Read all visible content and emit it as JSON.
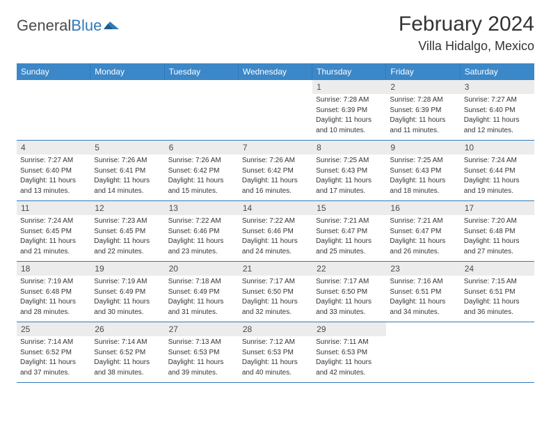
{
  "colors": {
    "header_bg": "#3b87c8",
    "header_border": "#2f79b9",
    "daynum_bg": "#ececec",
    "text": "#333333",
    "logo_gray": "#4a4a4a",
    "logo_blue": "#2f79b9",
    "page_bg": "#ffffff"
  },
  "typography": {
    "month_title_fontsize": 30,
    "location_fontsize": 18,
    "dow_fontsize": 12,
    "daynum_fontsize": 12,
    "cell_fontsize": 10,
    "logo_fontsize": 22
  },
  "logo": {
    "part1": "General",
    "part2": "Blue"
  },
  "title": {
    "month": "February 2024",
    "location": "Villa Hidalgo, Mexico"
  },
  "dow": [
    "Sunday",
    "Monday",
    "Tuesday",
    "Wednesday",
    "Thursday",
    "Friday",
    "Saturday"
  ],
  "weeks": [
    [
      {},
      {},
      {},
      {},
      {
        "day": "1",
        "sunrise": "Sunrise: 7:28 AM",
        "sunset": "Sunset: 6:39 PM",
        "daylight1": "Daylight: 11 hours",
        "daylight2": "and 10 minutes."
      },
      {
        "day": "2",
        "sunrise": "Sunrise: 7:28 AM",
        "sunset": "Sunset: 6:39 PM",
        "daylight1": "Daylight: 11 hours",
        "daylight2": "and 11 minutes."
      },
      {
        "day": "3",
        "sunrise": "Sunrise: 7:27 AM",
        "sunset": "Sunset: 6:40 PM",
        "daylight1": "Daylight: 11 hours",
        "daylight2": "and 12 minutes."
      }
    ],
    [
      {
        "day": "4",
        "sunrise": "Sunrise: 7:27 AM",
        "sunset": "Sunset: 6:40 PM",
        "daylight1": "Daylight: 11 hours",
        "daylight2": "and 13 minutes."
      },
      {
        "day": "5",
        "sunrise": "Sunrise: 7:26 AM",
        "sunset": "Sunset: 6:41 PM",
        "daylight1": "Daylight: 11 hours",
        "daylight2": "and 14 minutes."
      },
      {
        "day": "6",
        "sunrise": "Sunrise: 7:26 AM",
        "sunset": "Sunset: 6:42 PM",
        "daylight1": "Daylight: 11 hours",
        "daylight2": "and 15 minutes."
      },
      {
        "day": "7",
        "sunrise": "Sunrise: 7:26 AM",
        "sunset": "Sunset: 6:42 PM",
        "daylight1": "Daylight: 11 hours",
        "daylight2": "and 16 minutes."
      },
      {
        "day": "8",
        "sunrise": "Sunrise: 7:25 AM",
        "sunset": "Sunset: 6:43 PM",
        "daylight1": "Daylight: 11 hours",
        "daylight2": "and 17 minutes."
      },
      {
        "day": "9",
        "sunrise": "Sunrise: 7:25 AM",
        "sunset": "Sunset: 6:43 PM",
        "daylight1": "Daylight: 11 hours",
        "daylight2": "and 18 minutes."
      },
      {
        "day": "10",
        "sunrise": "Sunrise: 7:24 AM",
        "sunset": "Sunset: 6:44 PM",
        "daylight1": "Daylight: 11 hours",
        "daylight2": "and 19 minutes."
      }
    ],
    [
      {
        "day": "11",
        "sunrise": "Sunrise: 7:24 AM",
        "sunset": "Sunset: 6:45 PM",
        "daylight1": "Daylight: 11 hours",
        "daylight2": "and 21 minutes."
      },
      {
        "day": "12",
        "sunrise": "Sunrise: 7:23 AM",
        "sunset": "Sunset: 6:45 PM",
        "daylight1": "Daylight: 11 hours",
        "daylight2": "and 22 minutes."
      },
      {
        "day": "13",
        "sunrise": "Sunrise: 7:22 AM",
        "sunset": "Sunset: 6:46 PM",
        "daylight1": "Daylight: 11 hours",
        "daylight2": "and 23 minutes."
      },
      {
        "day": "14",
        "sunrise": "Sunrise: 7:22 AM",
        "sunset": "Sunset: 6:46 PM",
        "daylight1": "Daylight: 11 hours",
        "daylight2": "and 24 minutes."
      },
      {
        "day": "15",
        "sunrise": "Sunrise: 7:21 AM",
        "sunset": "Sunset: 6:47 PM",
        "daylight1": "Daylight: 11 hours",
        "daylight2": "and 25 minutes."
      },
      {
        "day": "16",
        "sunrise": "Sunrise: 7:21 AM",
        "sunset": "Sunset: 6:47 PM",
        "daylight1": "Daylight: 11 hours",
        "daylight2": "and 26 minutes."
      },
      {
        "day": "17",
        "sunrise": "Sunrise: 7:20 AM",
        "sunset": "Sunset: 6:48 PM",
        "daylight1": "Daylight: 11 hours",
        "daylight2": "and 27 minutes."
      }
    ],
    [
      {
        "day": "18",
        "sunrise": "Sunrise: 7:19 AM",
        "sunset": "Sunset: 6:48 PM",
        "daylight1": "Daylight: 11 hours",
        "daylight2": "and 28 minutes."
      },
      {
        "day": "19",
        "sunrise": "Sunrise: 7:19 AM",
        "sunset": "Sunset: 6:49 PM",
        "daylight1": "Daylight: 11 hours",
        "daylight2": "and 30 minutes."
      },
      {
        "day": "20",
        "sunrise": "Sunrise: 7:18 AM",
        "sunset": "Sunset: 6:49 PM",
        "daylight1": "Daylight: 11 hours",
        "daylight2": "and 31 minutes."
      },
      {
        "day": "21",
        "sunrise": "Sunrise: 7:17 AM",
        "sunset": "Sunset: 6:50 PM",
        "daylight1": "Daylight: 11 hours",
        "daylight2": "and 32 minutes."
      },
      {
        "day": "22",
        "sunrise": "Sunrise: 7:17 AM",
        "sunset": "Sunset: 6:50 PM",
        "daylight1": "Daylight: 11 hours",
        "daylight2": "and 33 minutes."
      },
      {
        "day": "23",
        "sunrise": "Sunrise: 7:16 AM",
        "sunset": "Sunset: 6:51 PM",
        "daylight1": "Daylight: 11 hours",
        "daylight2": "and 34 minutes."
      },
      {
        "day": "24",
        "sunrise": "Sunrise: 7:15 AM",
        "sunset": "Sunset: 6:51 PM",
        "daylight1": "Daylight: 11 hours",
        "daylight2": "and 36 minutes."
      }
    ],
    [
      {
        "day": "25",
        "sunrise": "Sunrise: 7:14 AM",
        "sunset": "Sunset: 6:52 PM",
        "daylight1": "Daylight: 11 hours",
        "daylight2": "and 37 minutes."
      },
      {
        "day": "26",
        "sunrise": "Sunrise: 7:14 AM",
        "sunset": "Sunset: 6:52 PM",
        "daylight1": "Daylight: 11 hours",
        "daylight2": "and 38 minutes."
      },
      {
        "day": "27",
        "sunrise": "Sunrise: 7:13 AM",
        "sunset": "Sunset: 6:53 PM",
        "daylight1": "Daylight: 11 hours",
        "daylight2": "and 39 minutes."
      },
      {
        "day": "28",
        "sunrise": "Sunrise: 7:12 AM",
        "sunset": "Sunset: 6:53 PM",
        "daylight1": "Daylight: 11 hours",
        "daylight2": "and 40 minutes."
      },
      {
        "day": "29",
        "sunrise": "Sunrise: 7:11 AM",
        "sunset": "Sunset: 6:53 PM",
        "daylight1": "Daylight: 11 hours",
        "daylight2": "and 42 minutes."
      },
      {},
      {}
    ]
  ]
}
